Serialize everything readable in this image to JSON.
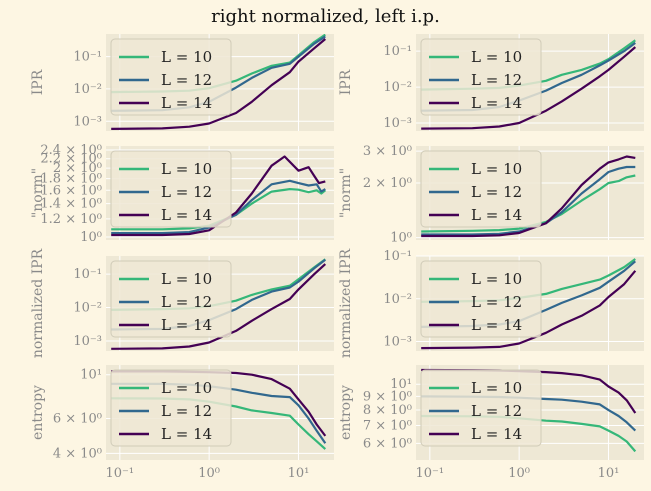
{
  "figure_title": "right normalized, left i.p.",
  "colors": {
    "L10": "#35b779",
    "L12": "#31688e",
    "L14": "#440154",
    "panel_bg": "#eee8d5",
    "fig_bg": "#fdf6e3",
    "grid": "#ffffff",
    "tick_text": "#8a8a8a"
  },
  "chart_data": [
    {
      "type": "line",
      "title": "",
      "xlabel": "",
      "ylabel": "IPR",
      "xscale": "log",
      "yscale": "log",
      "xlim": [
        0.07,
        25
      ],
      "ylim": [
        0.0005,
        0.5
      ],
      "yticks": [
        {
          "v": 0.001,
          "label": "10⁻³"
        },
        {
          "v": 0.01,
          "label": "10⁻²"
        },
        {
          "v": 0.1,
          "label": "10⁻¹"
        }
      ],
      "xticks": [],
      "legend_position": "upper-left",
      "series": [
        {
          "name": "L = 10",
          "x": [
            0.08,
            0.3,
            0.6,
            1,
            2,
            3,
            5,
            8,
            10,
            15,
            20
          ],
          "y": [
            0.008,
            0.0083,
            0.0088,
            0.0105,
            0.018,
            0.03,
            0.052,
            0.065,
            0.11,
            0.28,
            0.48
          ]
        },
        {
          "name": "L = 12",
          "x": [
            0.08,
            0.3,
            0.6,
            1,
            2,
            3,
            5,
            8,
            10,
            15,
            20
          ],
          "y": [
            0.0021,
            0.0022,
            0.0027,
            0.004,
            0.011,
            0.022,
            0.045,
            0.06,
            0.1,
            0.25,
            0.42
          ]
        },
        {
          "name": "L = 14",
          "x": [
            0.08,
            0.3,
            0.6,
            1,
            2,
            3,
            5,
            8,
            10,
            15,
            20
          ],
          "y": [
            0.00058,
            0.0006,
            0.00068,
            0.00085,
            0.0018,
            0.004,
            0.013,
            0.033,
            0.07,
            0.18,
            0.35
          ]
        }
      ]
    },
    {
      "type": "line",
      "title": "",
      "xlabel": "",
      "ylabel": "IPR",
      "xscale": "log",
      "yscale": "log",
      "xlim": [
        0.07,
        25
      ],
      "ylim": [
        0.0006,
        0.3
      ],
      "yticks": [
        {
          "v": 0.001,
          "label": "10⁻³"
        },
        {
          "v": 0.01,
          "label": "10⁻²"
        },
        {
          "v": 0.1,
          "label": "10⁻¹"
        }
      ],
      "xticks": [],
      "legend_position": "upper-left",
      "series": [
        {
          "name": "L = 10",
          "x": [
            0.08,
            0.3,
            0.6,
            1,
            2,
            3,
            5,
            8,
            10,
            15,
            20
          ],
          "y": [
            0.0085,
            0.009,
            0.0095,
            0.011,
            0.015,
            0.022,
            0.03,
            0.045,
            0.06,
            0.12,
            0.2
          ]
        },
        {
          "name": "L = 12",
          "x": [
            0.08,
            0.3,
            0.6,
            1,
            2,
            3,
            5,
            8,
            10,
            15,
            20
          ],
          "y": [
            0.0022,
            0.0023,
            0.0028,
            0.0042,
            0.008,
            0.013,
            0.022,
            0.04,
            0.055,
            0.1,
            0.17
          ]
        },
        {
          "name": "L = 14",
          "x": [
            0.08,
            0.3,
            0.6,
            1,
            2,
            3,
            5,
            8,
            10,
            15,
            20
          ],
          "y": [
            0.0007,
            0.00072,
            0.0008,
            0.001,
            0.0022,
            0.004,
            0.009,
            0.02,
            0.03,
            0.07,
            0.13
          ]
        }
      ]
    },
    {
      "type": "line",
      "title": "",
      "xlabel": "",
      "ylabel": "\"norm\"",
      "xscale": "log",
      "yscale": "log",
      "xlim": [
        0.07,
        25
      ],
      "ylim": [
        0.97,
        2.5
      ],
      "yticks": [
        {
          "v": 1.0,
          "label": "10⁰"
        },
        {
          "v": 1.2,
          "label": "1.2 × 10⁰"
        },
        {
          "v": 1.4,
          "label": "1.4 × 10⁰"
        },
        {
          "v": 1.6,
          "label": "1.6 × 10⁰"
        },
        {
          "v": 1.8,
          "label": "1.8 × 10⁰"
        },
        {
          "v": 2.0,
          "label": "2 × 10⁰"
        },
        {
          "v": 2.2,
          "label": "2.2 × 10⁰"
        },
        {
          "v": 2.4,
          "label": "2.4 × 10⁰"
        }
      ],
      "xticks": [],
      "legend_position": "upper-left",
      "series": [
        {
          "name": "L = 10",
          "x": [
            0.08,
            0.3,
            0.6,
            1,
            2,
            3,
            5,
            8,
            10,
            13,
            16,
            18,
            20
          ],
          "y": [
            1.08,
            1.08,
            1.09,
            1.12,
            1.25,
            1.4,
            1.58,
            1.62,
            1.61,
            1.57,
            1.6,
            1.55,
            1.6
          ]
        },
        {
          "name": "L = 12",
          "x": [
            0.08,
            0.3,
            0.6,
            1,
            2,
            3,
            5,
            8,
            10,
            13,
            16,
            18,
            20
          ],
          "y": [
            1.04,
            1.04,
            1.05,
            1.1,
            1.25,
            1.45,
            1.7,
            1.76,
            1.72,
            1.68,
            1.7,
            1.58,
            1.62
          ]
        },
        {
          "name": "L = 14",
          "x": [
            0.08,
            0.3,
            0.6,
            1,
            2,
            3,
            5,
            7,
            10,
            13,
            15,
            17,
            20
          ],
          "y": [
            1.02,
            1.02,
            1.03,
            1.07,
            1.28,
            1.55,
            2.05,
            2.25,
            1.95,
            2.02,
            1.85,
            1.72,
            1.75
          ]
        }
      ]
    },
    {
      "type": "line",
      "title": "",
      "xlabel": "",
      "ylabel": "\"norm\"",
      "xscale": "log",
      "yscale": "log",
      "xlim": [
        0.07,
        25
      ],
      "ylim": [
        0.97,
        3.2
      ],
      "yticks": [
        {
          "v": 1.0,
          "label": "10⁰"
        },
        {
          "v": 2.0,
          "label": "2 × 10⁰"
        },
        {
          "v": 3.0,
          "label": "3 × 10⁰"
        }
      ],
      "xticks": [],
      "legend_position": "upper-left",
      "series": [
        {
          "name": "L = 10",
          "x": [
            0.08,
            0.3,
            0.6,
            1,
            2,
            3,
            5,
            8,
            10,
            13,
            16,
            20
          ],
          "y": [
            1.08,
            1.09,
            1.1,
            1.12,
            1.22,
            1.35,
            1.6,
            1.85,
            2.0,
            2.05,
            2.15,
            2.2
          ]
        },
        {
          "name": "L = 12",
          "x": [
            0.08,
            0.3,
            0.6,
            1,
            2,
            3,
            5,
            8,
            10,
            13,
            16,
            20
          ],
          "y": [
            1.04,
            1.04,
            1.05,
            1.08,
            1.2,
            1.38,
            1.75,
            2.1,
            2.3,
            2.4,
            2.45,
            2.45
          ]
        },
        {
          "name": "L = 14",
          "x": [
            0.08,
            0.3,
            0.6,
            1,
            2,
            3,
            5,
            8,
            10,
            13,
            16,
            20
          ],
          "y": [
            1.02,
            1.02,
            1.03,
            1.06,
            1.2,
            1.45,
            1.95,
            2.4,
            2.6,
            2.7,
            2.8,
            2.75
          ]
        }
      ]
    },
    {
      "type": "line",
      "title": "",
      "xlabel": "",
      "ylabel": "normalized IPR",
      "xscale": "log",
      "yscale": "log",
      "xlim": [
        0.07,
        25
      ],
      "ylim": [
        0.0005,
        0.35
      ],
      "yticks": [
        {
          "v": 0.001,
          "label": "10⁻³"
        },
        {
          "v": 0.01,
          "label": "10⁻²"
        },
        {
          "v": 0.1,
          "label": "10⁻¹"
        }
      ],
      "xticks": [],
      "legend_position": "upper-left",
      "series": [
        {
          "name": "L = 10",
          "x": [
            0.08,
            0.3,
            0.6,
            1,
            2,
            3,
            5,
            8,
            10,
            15,
            20
          ],
          "y": [
            0.0085,
            0.009,
            0.0095,
            0.011,
            0.016,
            0.024,
            0.035,
            0.045,
            0.07,
            0.16,
            0.28
          ]
        },
        {
          "name": "L = 12",
          "x": [
            0.08,
            0.3,
            0.6,
            1,
            2,
            3,
            5,
            8,
            10,
            15,
            20
          ],
          "y": [
            0.0022,
            0.0023,
            0.0028,
            0.0042,
            0.009,
            0.017,
            0.03,
            0.04,
            0.06,
            0.15,
            0.27
          ]
        },
        {
          "name": "L = 14",
          "x": [
            0.08,
            0.3,
            0.6,
            1,
            2,
            3,
            5,
            8,
            10,
            15,
            20
          ],
          "y": [
            0.00058,
            0.0006,
            0.00068,
            0.0009,
            0.002,
            0.004,
            0.009,
            0.018,
            0.035,
            0.1,
            0.2
          ]
        }
      ]
    },
    {
      "type": "line",
      "title": "",
      "xlabel": "",
      "ylabel": "normalized IPR",
      "xscale": "log",
      "yscale": "log",
      "xlim": [
        0.07,
        25
      ],
      "ylim": [
        0.0006,
        0.1
      ],
      "yticks": [
        {
          "v": 0.001,
          "label": "10⁻³"
        },
        {
          "v": 0.01,
          "label": "10⁻²"
        },
        {
          "v": 0.1,
          "label": "10⁻¹"
        }
      ],
      "xticks": [],
      "legend_position": "upper-left",
      "series": [
        {
          "name": "L = 10",
          "x": [
            0.08,
            0.3,
            0.6,
            1,
            2,
            3,
            5,
            8,
            10,
            15,
            20
          ],
          "y": [
            0.0085,
            0.0088,
            0.0092,
            0.0105,
            0.013,
            0.017,
            0.022,
            0.028,
            0.035,
            0.055,
            0.085
          ]
        },
        {
          "name": "L = 12",
          "x": [
            0.08,
            0.3,
            0.6,
            1,
            2,
            3,
            5,
            8,
            10,
            15,
            20
          ],
          "y": [
            0.0022,
            0.0023,
            0.0025,
            0.003,
            0.0055,
            0.008,
            0.012,
            0.018,
            0.025,
            0.045,
            0.075
          ]
        },
        {
          "name": "L = 14",
          "x": [
            0.08,
            0.3,
            0.6,
            1,
            2,
            3,
            5,
            8,
            10,
            15,
            20
          ],
          "y": [
            0.0007,
            0.00072,
            0.00075,
            0.0009,
            0.0016,
            0.0025,
            0.004,
            0.007,
            0.011,
            0.022,
            0.045
          ]
        }
      ]
    },
    {
      "type": "line",
      "title": "",
      "xlabel": "",
      "ylabel": "entropy",
      "xscale": "log",
      "yscale": "log",
      "xlim": [
        0.07,
        25
      ],
      "ylim": [
        3.7,
        11.2
      ],
      "yticks": [
        {
          "v": 4.0,
          "label": "4 × 10⁰"
        },
        {
          "v": 6.0,
          "label": "6 × 10⁰"
        },
        {
          "v": 10.0,
          "label": "10¹"
        }
      ],
      "xticks": [
        {
          "v": 0.1,
          "label": "10⁻¹"
        },
        {
          "v": 1,
          "label": "10⁰"
        },
        {
          "v": 10,
          "label": "10¹"
        }
      ],
      "legend_position": "upper-left",
      "series": [
        {
          "name": "L = 10",
          "x": [
            0.08,
            0.3,
            0.6,
            1,
            2,
            3,
            5,
            8,
            10,
            13,
            16,
            20
          ],
          "y": [
            7.6,
            7.58,
            7.5,
            7.3,
            6.9,
            6.6,
            6.4,
            6.2,
            5.6,
            5.0,
            4.6,
            4.2
          ]
        },
        {
          "name": "L = 12",
          "x": [
            0.08,
            0.3,
            0.6,
            1,
            2,
            3,
            5,
            8,
            10,
            13,
            16,
            20
          ],
          "y": [
            9.0,
            8.98,
            8.9,
            8.75,
            8.4,
            8.1,
            7.8,
            7.7,
            7.0,
            6.0,
            5.2,
            4.5
          ]
        },
        {
          "name": "L = 14",
          "x": [
            0.08,
            0.3,
            0.6,
            1,
            2,
            3,
            5,
            8,
            10,
            13,
            16,
            20
          ],
          "y": [
            10.4,
            10.4,
            10.35,
            10.3,
            10.2,
            10.0,
            9.5,
            8.5,
            7.5,
            6.5,
            5.6,
            4.9
          ]
        }
      ]
    },
    {
      "type": "line",
      "title": "",
      "xlabel": "",
      "ylabel": "entropy",
      "xscale": "log",
      "yscale": "log",
      "xlim": [
        0.07,
        25
      ],
      "ylim": [
        5.2,
        11.8
      ],
      "yticks": [
        {
          "v": 6.0,
          "label": "6 × 10⁰"
        },
        {
          "v": 7.0,
          "label": "7 × 10⁰"
        },
        {
          "v": 8.0,
          "label": "8 × 10⁰"
        },
        {
          "v": 9.0,
          "label": "9 × 10⁰"
        },
        {
          "v": 10.0,
          "label": "10¹"
        }
      ],
      "xticks": [
        {
          "v": 0.1,
          "label": "10⁻¹"
        },
        {
          "v": 1,
          "label": "10⁰"
        },
        {
          "v": 10,
          "label": "10¹"
        }
      ],
      "legend_position": "upper-left",
      "series": [
        {
          "name": "L = 10",
          "x": [
            0.08,
            0.3,
            0.6,
            1,
            2,
            3,
            5,
            8,
            10,
            13,
            16,
            20
          ],
          "y": [
            7.6,
            7.58,
            7.55,
            7.45,
            7.3,
            7.25,
            7.1,
            6.95,
            6.7,
            6.4,
            6.1,
            5.6
          ]
        },
        {
          "name": "L = 12",
          "x": [
            0.08,
            0.3,
            0.6,
            1,
            2,
            3,
            5,
            8,
            10,
            13,
            16,
            20
          ],
          "y": [
            9.0,
            8.98,
            8.95,
            8.9,
            8.8,
            8.75,
            8.6,
            8.4,
            8.0,
            7.6,
            7.2,
            6.7
          ]
        },
        {
          "name": "L = 14",
          "x": [
            0.08,
            0.3,
            0.6,
            1,
            2,
            3,
            5,
            8,
            10,
            13,
            16,
            20
          ],
          "y": [
            11.3,
            11.28,
            11.25,
            11.2,
            11.1,
            11.0,
            10.8,
            10.4,
            9.8,
            9.3,
            8.7,
            7.8
          ]
        }
      ]
    }
  ]
}
